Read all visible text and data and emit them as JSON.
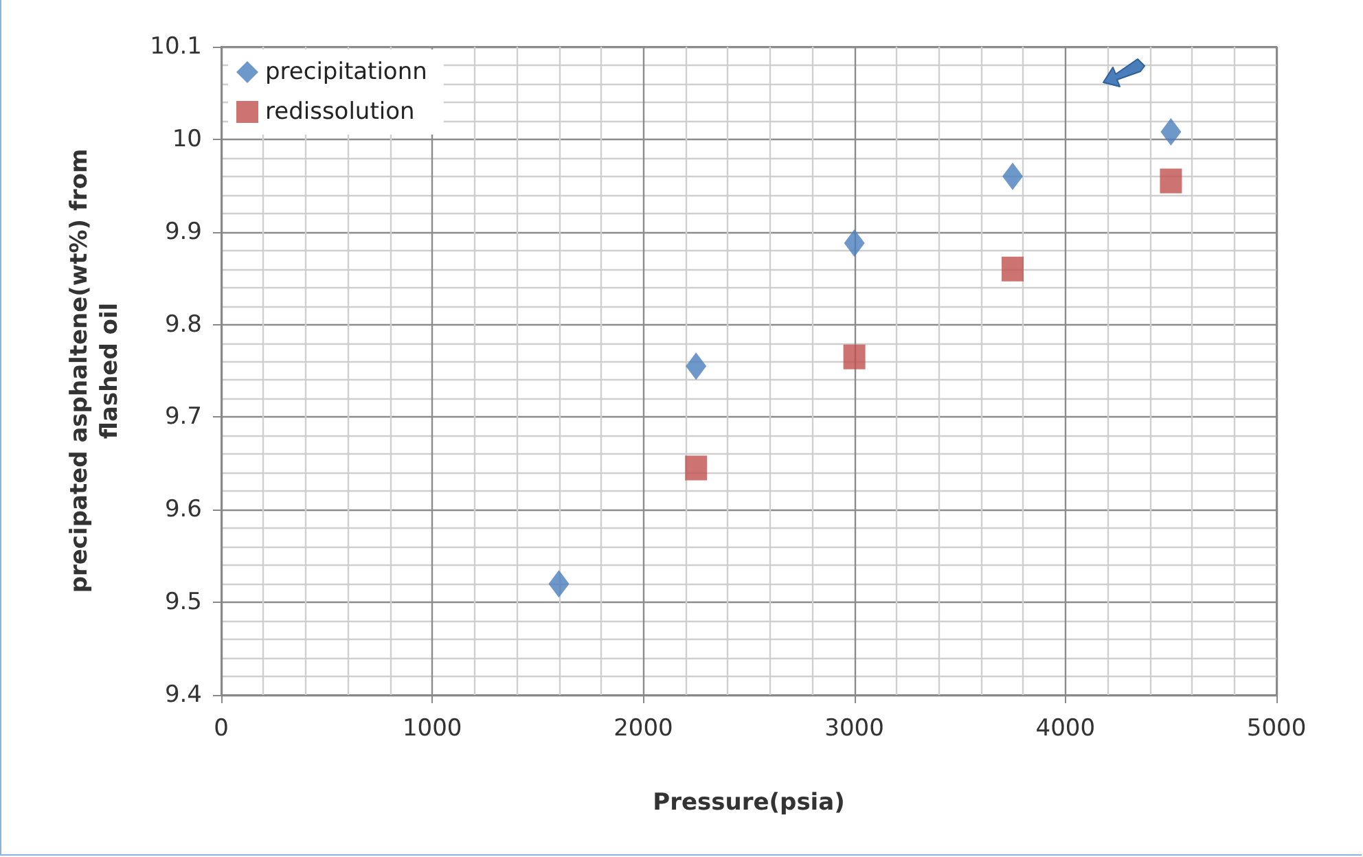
{
  "chart_data": {
    "type": "scatter",
    "xlabel": "Pressure(psia)",
    "ylabel": "precipated asphaltene(wt%) from\nflashed oil",
    "x": [
      1600,
      2250,
      3000,
      3750,
      4500
    ],
    "series": [
      {
        "name": "precipitationn",
        "color": "#4a7ebb",
        "marker": "diamond",
        "values": [
          9.52,
          9.755,
          9.888,
          9.96,
          10.008
        ]
      },
      {
        "name": "redissolution",
        "color": "#c0504d",
        "marker": "square",
        "x": [
          2250,
          3000,
          3750,
          4500
        ],
        "values": [
          9.645,
          9.765,
          9.86,
          9.955
        ]
      }
    ],
    "xlim": [
      0,
      5000
    ],
    "xticks": [
      0,
      1000,
      2000,
      3000,
      4000,
      5000
    ],
    "ylim": [
      9.4,
      10.1
    ],
    "yticks": [
      9.4,
      9.5,
      9.6,
      9.7,
      9.8,
      9.9,
      10,
      10.1
    ],
    "grid": true,
    "legend": "top left"
  }
}
